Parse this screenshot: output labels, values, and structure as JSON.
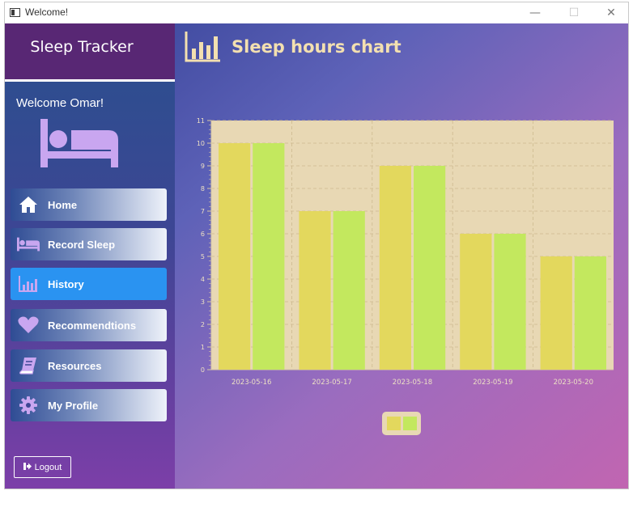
{
  "window": {
    "title": "Welcome!",
    "minimize_glyph": "—",
    "maximize_glyph": "☐",
    "close_glyph": "✕"
  },
  "sidebar": {
    "app_title": "Sleep Tracker",
    "welcome": "Welcome Omar!",
    "nav": [
      {
        "label": "Home",
        "icon": "home-icon"
      },
      {
        "label": "Record Sleep",
        "icon": "bed-icon"
      },
      {
        "label": "History",
        "icon": "bar-chart-icon",
        "active": true
      },
      {
        "label": "Recommendtions",
        "icon": "heart-icon"
      },
      {
        "label": "Resources",
        "icon": "book-icon"
      },
      {
        "label": "My Profile",
        "icon": "gear-icon"
      }
    ],
    "logout_label": "Logout"
  },
  "main": {
    "title": "Sleep hours chart"
  },
  "chart_data": {
    "type": "bar",
    "categories": [
      "2023-05-16",
      "2023-05-17",
      "2023-05-18",
      "2023-05-19",
      "2023-05-20"
    ],
    "series": [
      {
        "values": [
          10,
          7,
          9,
          6,
          5
        ],
        "color": "#e3d85d"
      },
      {
        "values": [
          10,
          7,
          9,
          6,
          5
        ],
        "color": "#c3e85e"
      }
    ],
    "ylim": [
      0,
      11
    ],
    "yticks": [
      0,
      1,
      2,
      3,
      4,
      5,
      6,
      7,
      8,
      9,
      10,
      11
    ],
    "grid": true,
    "plot_background": "#e8d8b4",
    "legend": "bottom-center"
  },
  "colors": {
    "accent": "#2a93f1",
    "title_text": "#f3e0b0",
    "icon": "#c9a6f0",
    "header_bg": "#582774"
  }
}
